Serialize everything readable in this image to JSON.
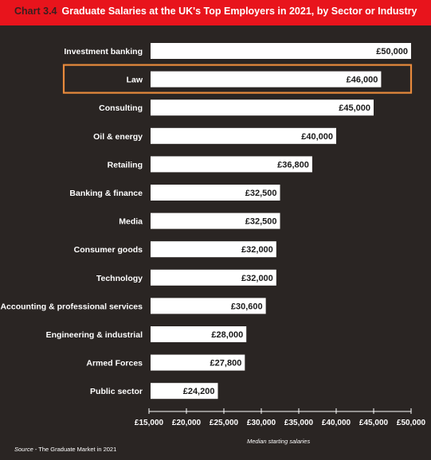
{
  "header": {
    "chart_number": "Chart 3.4",
    "title": "Graduate Salaries at the UK's Top Employers in 2021, by Sector or Industry"
  },
  "footer": {
    "source_label": "Source",
    "source_text": " - The Graduate Market in 2021"
  },
  "colors": {
    "title_bar": "#e8141c",
    "background": "#2a2523",
    "bar": "#ffffff",
    "highlight": "#e88a3c"
  },
  "chart_data": {
    "type": "bar",
    "orientation": "horizontal",
    "title": "Graduate Salaries at the UK's Top Employers in 2021, by Sector or Industry",
    "xlabel": "Median starting salaries",
    "ylabel": "",
    "xlim": [
      15000,
      50000
    ],
    "grid": false,
    "highlighted_category": "Law",
    "categories": [
      "Investment banking",
      "Law",
      "Consulting",
      "Oil & energy",
      "Retailing",
      "Banking & finance",
      "Media",
      "Consumer goods",
      "Technology",
      "Accounting & professional services",
      "Engineering & industrial",
      "Armed Forces",
      "Public sector"
    ],
    "values": [
      50000,
      46000,
      45000,
      40000,
      36800,
      32500,
      32500,
      32000,
      32000,
      30600,
      28000,
      27800,
      24200
    ],
    "value_labels": [
      "£50,000",
      "£46,000",
      "£45,000",
      "£40,000",
      "£36,800",
      "£32,500",
      "£32,500",
      "£32,000",
      "£32,000",
      "£30,600",
      "£28,000",
      "£27,800",
      "£24,200"
    ],
    "x_ticks": [
      15000,
      20000,
      25000,
      30000,
      35000,
      40000,
      45000,
      50000
    ],
    "x_tick_labels": [
      "£15,000",
      "£20,000",
      "£25,000",
      "£30,000",
      "£35,000",
      "£40,000",
      "£45,000",
      "£50,000"
    ]
  }
}
